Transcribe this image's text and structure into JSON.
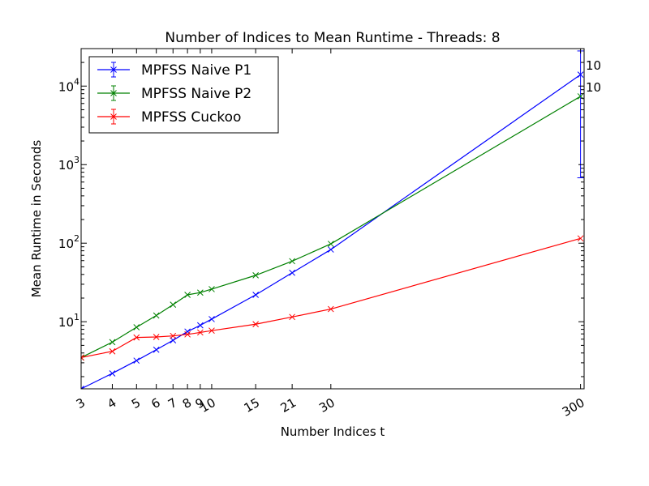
{
  "chart_data": {
    "type": "line",
    "title": "Number of Indices to Mean Runtime - Threads: 8",
    "xlabel": "Number Indices t",
    "ylabel": "Mean Runtime in Seconds",
    "xscale": "log",
    "yscale": "log",
    "xlim": [
      3,
      310
    ],
    "ylim": [
      1.4,
      30000
    ],
    "x_ticks": [
      3,
      4,
      5,
      6,
      7,
      8,
      9,
      10,
      15,
      21,
      30,
      300
    ],
    "x_tick_labels": [
      "3",
      "4",
      "5",
      "6",
      "7",
      "8",
      "9",
      "10",
      "15",
      "21",
      "30",
      "300"
    ],
    "y_ticks": [
      10,
      100,
      1000,
      10000
    ],
    "y_tick_labels": [
      {
        "base": "10",
        "exp": "1"
      },
      {
        "base": "10",
        "exp": "2"
      },
      {
        "base": "10",
        "exp": "3"
      },
      {
        "base": "10",
        "exp": "4"
      }
    ],
    "legend_position": "top-left",
    "series": [
      {
        "name": "MPFSS Naive P1",
        "color": "#0000ff",
        "x": [
          3,
          4,
          5,
          6,
          7,
          8,
          9,
          10,
          15,
          21,
          30,
          300
        ],
        "y": [
          1.4,
          2.2,
          3.2,
          4.4,
          5.8,
          7.5,
          9.0,
          10.8,
          22,
          42,
          83,
          14000
        ],
        "errorbars": [
          {
            "x": 300,
            "low": 680,
            "high": 28000
          }
        ]
      },
      {
        "name": "MPFSS Naive P2",
        "color": "#008000",
        "x": [
          3,
          4,
          5,
          6,
          7,
          8,
          9,
          10,
          15,
          21,
          30,
          300
        ],
        "y": [
          3.5,
          5.5,
          8.5,
          12,
          16.5,
          22,
          23.5,
          26,
          39,
          59,
          98,
          7400
        ],
        "errorbars": []
      },
      {
        "name": "MPFSS Cuckoo",
        "color": "#ff0000",
        "x": [
          3,
          4,
          5,
          6,
          7,
          8,
          9,
          10,
          15,
          21,
          30,
          300
        ],
        "y": [
          3.5,
          4.2,
          6.3,
          6.4,
          6.6,
          6.9,
          7.3,
          7.7,
          9.3,
          11.5,
          14.5,
          115
        ],
        "errorbars": []
      }
    ],
    "annotations": [
      "10",
      "10"
    ]
  }
}
